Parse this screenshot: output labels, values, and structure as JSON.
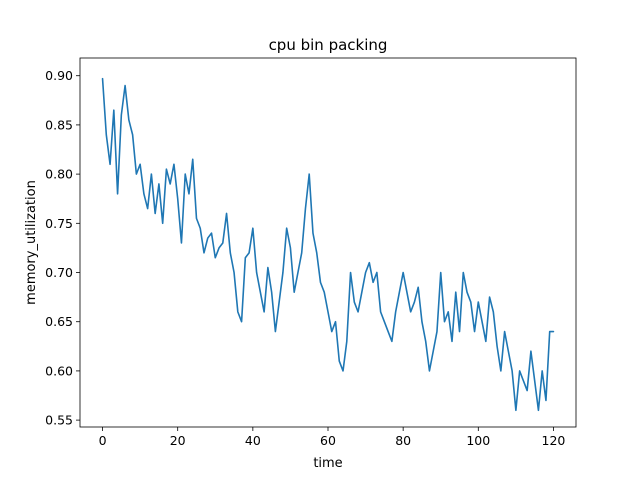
{
  "chart_data": {
    "type": "line",
    "title": "cpu bin packing",
    "xlabel": "time",
    "ylabel": "memory_utilization",
    "xlim": [
      -6,
      126
    ],
    "ylim": [
      0.543,
      0.918
    ],
    "xticks": [
      0,
      20,
      40,
      60,
      80,
      100,
      120
    ],
    "yticks": [
      0.55,
      0.6,
      0.65,
      0.7,
      0.75,
      0.8,
      0.85,
      0.9
    ],
    "xtick_labels": [
      "0",
      "20",
      "40",
      "60",
      "80",
      "100",
      "120"
    ],
    "ytick_labels": [
      "0.55",
      "0.60",
      "0.65",
      "0.70",
      "0.75",
      "0.80",
      "0.85",
      "0.90"
    ],
    "grid": false,
    "line_color": "#1f77b4",
    "series": [
      {
        "x": [
          0,
          1,
          2,
          3,
          4,
          5,
          6,
          7,
          8,
          9,
          10,
          11,
          12,
          13,
          14,
          15,
          16,
          17,
          18,
          19,
          20,
          21,
          22,
          23,
          24,
          25,
          26,
          27,
          28,
          29,
          30,
          31,
          32,
          33,
          34,
          35,
          36,
          37,
          38,
          39,
          40,
          41,
          42,
          43,
          44,
          45,
          46,
          47,
          48,
          49,
          50,
          51,
          52,
          53,
          54,
          55,
          56,
          57,
          58,
          59,
          60,
          61,
          62,
          63,
          64,
          65,
          66,
          67,
          68,
          69,
          70,
          71,
          72,
          73,
          74,
          75,
          76,
          77,
          78,
          79,
          80,
          81,
          82,
          83,
          84,
          85,
          86,
          87,
          88,
          89,
          90,
          91,
          92,
          93,
          94,
          95,
          96,
          97,
          98,
          99,
          100,
          101,
          102,
          103,
          104,
          105,
          106,
          107,
          108,
          109,
          110,
          111,
          112,
          113,
          114,
          115,
          116,
          117,
          118,
          119,
          120
        ],
        "y": [
          0.897,
          0.84,
          0.81,
          0.865,
          0.78,
          0.86,
          0.89,
          0.855,
          0.84,
          0.8,
          0.81,
          0.78,
          0.765,
          0.8,
          0.76,
          0.79,
          0.75,
          0.805,
          0.79,
          0.81,
          0.775,
          0.73,
          0.8,
          0.78,
          0.815,
          0.755,
          0.745,
          0.72,
          0.735,
          0.74,
          0.715,
          0.725,
          0.73,
          0.76,
          0.72,
          0.7,
          0.66,
          0.65,
          0.715,
          0.72,
          0.745,
          0.7,
          0.68,
          0.66,
          0.705,
          0.68,
          0.64,
          0.67,
          0.7,
          0.745,
          0.725,
          0.68,
          0.7,
          0.72,
          0.765,
          0.8,
          0.74,
          0.72,
          0.69,
          0.68,
          0.66,
          0.64,
          0.65,
          0.61,
          0.6,
          0.63,
          0.7,
          0.67,
          0.66,
          0.68,
          0.7,
          0.71,
          0.69,
          0.7,
          0.66,
          0.65,
          0.64,
          0.63,
          0.66,
          0.68,
          0.7,
          0.68,
          0.66,
          0.67,
          0.685,
          0.65,
          0.63,
          0.6,
          0.62,
          0.64,
          0.7,
          0.65,
          0.66,
          0.63,
          0.68,
          0.64,
          0.7,
          0.68,
          0.67,
          0.64,
          0.67,
          0.65,
          0.63,
          0.675,
          0.66,
          0.625,
          0.6,
          0.64,
          0.62,
          0.6,
          0.56,
          0.6,
          0.59,
          0.58,
          0.62,
          0.59,
          0.56,
          0.6,
          0.57,
          0.64,
          0.64
        ]
      }
    ]
  }
}
